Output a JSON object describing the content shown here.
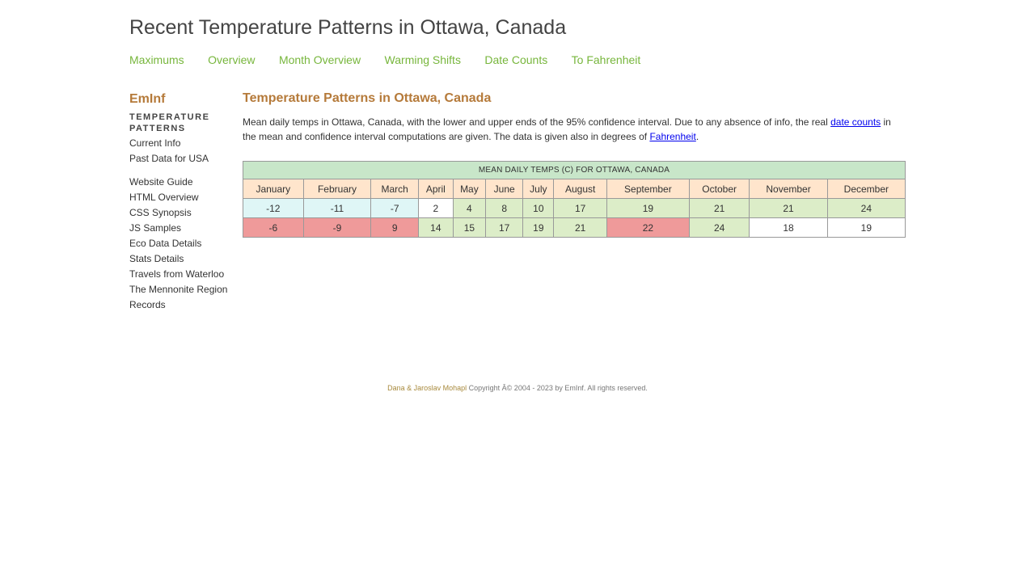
{
  "header": {
    "title": "Recent Temperature Patterns in Ottawa, Canada"
  },
  "nav": {
    "items": [
      "Maximums",
      "Overview",
      "Month Overview",
      "Warming Shifts",
      "Date Counts",
      "To Fahrenheit"
    ]
  },
  "sidebar": {
    "brand": "EmInf",
    "heading": "TEMPERATURE PATTERNS",
    "links_primary": [
      "Current Info",
      "Past Data for USA"
    ],
    "links_secondary": [
      "Website Guide",
      "HTML Overview",
      "CSS Synopsis",
      "JS Samples",
      "Eco Data Details",
      "Stats Details",
      "Travels from Waterloo",
      "The Mennonite Region",
      "Records"
    ]
  },
  "main": {
    "heading": "Temperature Patterns in Ottawa, Canada",
    "intro_part1": "Mean daily temps in Ottawa, Canada, with the lower and upper ends of the 95% confidence interval. Due to any absence of info, the real ",
    "intro_link1": "date counts",
    "intro_part2": " in the mean and confidence interval computations are given. The data is given also in degrees of ",
    "intro_link2": "Fahrenheit",
    "intro_part3": "."
  },
  "table": {
    "caption": "MEAN DAILY TEMPS (C) FOR OTTAWA, CANADA",
    "months": [
      "January",
      "February",
      "March",
      "April",
      "May",
      "June",
      "July",
      "August",
      "September",
      "October",
      "November",
      "December"
    ],
    "rows": [
      {
        "values": [
          "-12",
          "-11",
          "-7",
          "2",
          "4",
          "8",
          "10",
          "17",
          "19",
          "21",
          "21",
          "24"
        ],
        "shades": [
          "blue",
          "blue",
          "blue",
          "white",
          "green",
          "green",
          "green",
          "green",
          "green",
          "green",
          "green",
          "green"
        ]
      },
      {
        "values": [
          "-6",
          "-9",
          "9",
          "14",
          "15",
          "17",
          "19",
          "21",
          "22",
          "24",
          "18",
          "19"
        ],
        "shades": [
          "red",
          "red",
          "red",
          "green",
          "green",
          "green",
          "green",
          "green",
          "red",
          "green",
          "white",
          "white"
        ]
      }
    ],
    "colors": {
      "blue": "#dff6f6",
      "white": "#ffffff",
      "green": "#dcedc8",
      "red": "#ef9a9a",
      "header": "#ffe5cc",
      "caption": "#c8e6c9"
    }
  },
  "footer": {
    "authors": "Dana & Jaroslav Mohapl",
    "copyright": " Copyright Â© 2004 - 2023 by EmInf. All rights reserved."
  }
}
